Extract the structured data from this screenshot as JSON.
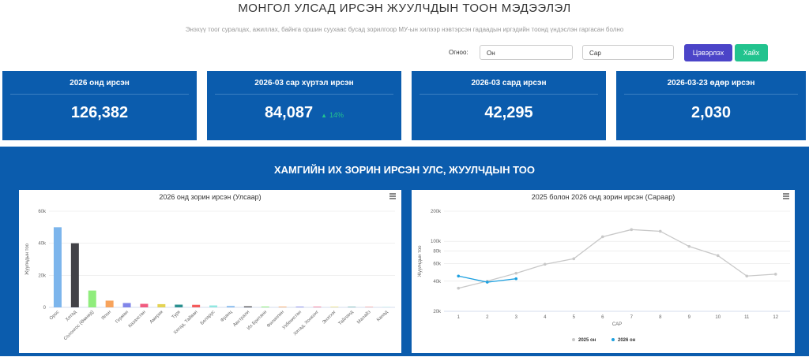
{
  "header": {
    "title": "МОНГОЛ УЛСАД ИРСЭН ЖУУЛЧДЫН ТООН МЭДЭЭЛЭЛ",
    "subtitle": "Энэхүү тоог суралцах, ажиллах, байнга оршин суухаас бусад зорилгоор МУ-ын хилээр нэвтэрсэн гадаадын иргэдийн тоонд үндэслэн гаргасан болно"
  },
  "filters": {
    "label": "Огноо:",
    "year": "Он",
    "month": "Сар",
    "clear": "Цэвэрлэх",
    "search": "Хайх"
  },
  "cards": [
    {
      "title": "2026 онд ирсэн",
      "value": "126,382"
    },
    {
      "title": "2026-03 сар хүртэл ирсэн",
      "value": "84,087",
      "change": "14%"
    },
    {
      "title": "2026-03 сард ирсэн",
      "value": "42,295"
    },
    {
      "title": "2026-03-23 өдөр ирсэн",
      "value": "2,030"
    }
  ],
  "section_title": "ХАМГИЙН ИХ ЗОРИН ИРСЭН УЛС, ЖУУЛЧДЫН ТОО",
  "chart_data": [
    {
      "type": "bar",
      "title": "2026 онд зорин ирсэн (Улсаар)",
      "y_label": "Жуулчдын тоо",
      "categories": [
        "Орос",
        "Хятад",
        "Солонгос (Өмнөд)",
        "Япон",
        "Герман",
        "Казахстан",
        "Америк",
        "Турк",
        "Хятад, Тайван",
        "Беларус",
        "Франц",
        "Австрали",
        "Их Британи",
        "Филиппин",
        "Узбекистан",
        "Хятад, Хонконг",
        "Энэтхэг",
        "Тайланд",
        "Малайз",
        "Канад"
      ],
      "values": [
        50000,
        40000,
        10500,
        4200,
        2700,
        2200,
        2000,
        1700,
        1600,
        1200,
        800,
        600,
        500,
        400,
        400,
        350,
        300,
        250,
        200,
        150
      ],
      "colors": [
        "#7cb5ec",
        "#434348",
        "#90ed7d",
        "#f7a35c",
        "#8085e9",
        "#f15c80",
        "#e4d354",
        "#2b908f",
        "#f45b5b",
        "#91e8e1",
        "#7cb5ec",
        "#434348",
        "#90ed7d",
        "#f7a35c",
        "#8085e9",
        "#f15c80",
        "#e4d354",
        "#2b908f",
        "#f45b5b",
        "#91e8e1"
      ],
      "ylim": [
        0,
        60000
      ],
      "yticks": [
        0,
        {
          "value": 20000,
          "label": "20k"
        },
        {
          "value": 40000,
          "label": "40k"
        },
        {
          "value": 60000,
          "label": "60k"
        }
      ],
      "grid": true
    },
    {
      "type": "line",
      "title": "2025 болон 2026 онд зорин ирсэн (Сараар)",
      "y_label": "Жуулчдын тоо",
      "x_label": "САР",
      "log_scale": true,
      "categories": [
        "1",
        "2",
        "3",
        "4",
        "5",
        "6",
        "7",
        "8",
        "9",
        "10",
        "11",
        "12"
      ],
      "series": [
        {
          "name": "2025 он",
          "color": "#c8c8c8",
          "values": [
            34000,
            40000,
            48000,
            59000,
            67000,
            111000,
            131000,
            126000,
            89000,
            72000,
            45000,
            47000
          ]
        },
        {
          "name": "2026 он",
          "color": "#1ca0e0",
          "values": [
            45000,
            39087,
            42295,
            null,
            null,
            null,
            null,
            null,
            null,
            null,
            null,
            null
          ]
        }
      ],
      "ylim": [
        20000,
        200000
      ],
      "yticks": [
        {
          "value": 20000,
          "label": "20k"
        },
        {
          "value": 40000,
          "label": "40k"
        },
        {
          "value": 60000,
          "label": "60k"
        },
        {
          "value": 80000,
          "label": "80k"
        },
        {
          "value": 100000,
          "label": "100k"
        },
        {
          "value": 200000,
          "label": "200k"
        }
      ],
      "grid": true,
      "legend": "bottom"
    }
  ]
}
